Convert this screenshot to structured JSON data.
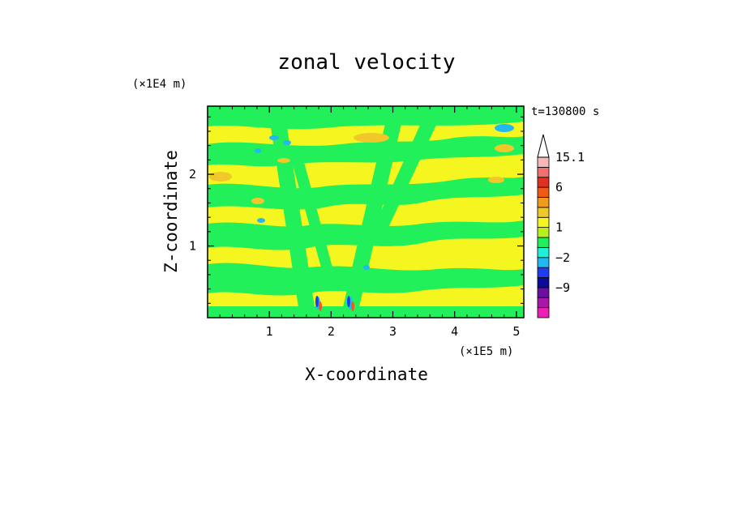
{
  "chart_data": {
    "type": "heatmap",
    "title": "zonal velocity",
    "xlabel": "X-coordinate",
    "ylabel": "Z-coordinate",
    "x_unit": "(×1E5 m)",
    "y_unit": "(×1E4 m)",
    "time_label": "t=130800 s",
    "xlim": [
      0,
      5.12
    ],
    "ylim": [
      0,
      2.95
    ],
    "x_ticks": [
      "1",
      "2",
      "3",
      "4",
      "5"
    ],
    "x_tick_values": [
      1,
      2,
      3,
      4,
      5
    ],
    "y_ticks": [
      "1",
      "2"
    ],
    "y_tick_values": [
      1,
      2
    ],
    "colorbar": {
      "levels": [
        -15,
        -12,
        -9,
        -6,
        -4,
        -2,
        -1,
        0,
        1,
        2,
        3,
        4,
        6,
        9,
        12,
        15.1
      ],
      "colors": [
        "#ee1fb4",
        "#a817a8",
        "#6a0fa0",
        "#0a0a9e",
        "#1f3df0",
        "#22b8f0",
        "#20f0d8",
        "#22f05a",
        "#b8f020",
        "#f5f520",
        "#f0c82a",
        "#f09a1e",
        "#f05a14",
        "#e03020",
        "#f07070",
        "#f8b8b8"
      ],
      "labels": [
        "15.1",
        "6",
        "1",
        "−2",
        "−9"
      ],
      "label_values": [
        15.1,
        6,
        1,
        -2,
        -9
      ],
      "extend": "max"
    },
    "field_colors": {
      "background": "#f5f520",
      "green": "#22f05a",
      "cyan": "#22b8f0",
      "orange": "#f0c82a",
      "blue": "#1f3df0",
      "red": "#f05a14"
    }
  }
}
